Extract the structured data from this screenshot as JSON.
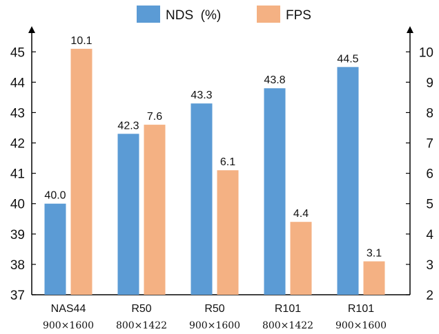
{
  "chart_data": {
    "type": "bar",
    "categories": [
      "NAS44",
      "R50",
      "R50",
      "R101",
      "R101"
    ],
    "resolutions": [
      "900×1600",
      "800×1422",
      "900×1600",
      "800×1422",
      "900×1600"
    ],
    "series": [
      {
        "name": "NDS  (%)",
        "axis": "left",
        "color": "#5b9bd5",
        "values": [
          40.0,
          42.3,
          43.3,
          43.8,
          44.5
        ],
        "labels": [
          "40.0",
          "42.3",
          "43.3",
          "43.8",
          "44.5"
        ]
      },
      {
        "name": "FPS",
        "axis": "right",
        "color": "#f4b183",
        "values": [
          10.1,
          7.6,
          6.1,
          4.4,
          3.1
        ],
        "labels": [
          "10.1",
          "7.6",
          "6.1",
          "4.4",
          "3.1"
        ]
      }
    ],
    "y_left": {
      "ylim": [
        37,
        45.8
      ],
      "ticks": [
        "37",
        "38",
        "39",
        "40",
        "41",
        "42",
        "43",
        "44",
        "45"
      ]
    },
    "y_right": {
      "ylim": [
        2,
        10.8
      ],
      "ticks": [
        "2",
        "3",
        "4",
        "5",
        "6",
        "7",
        "8",
        "9",
        "10"
      ]
    },
    "legend": "top-center",
    "grid": false
  }
}
